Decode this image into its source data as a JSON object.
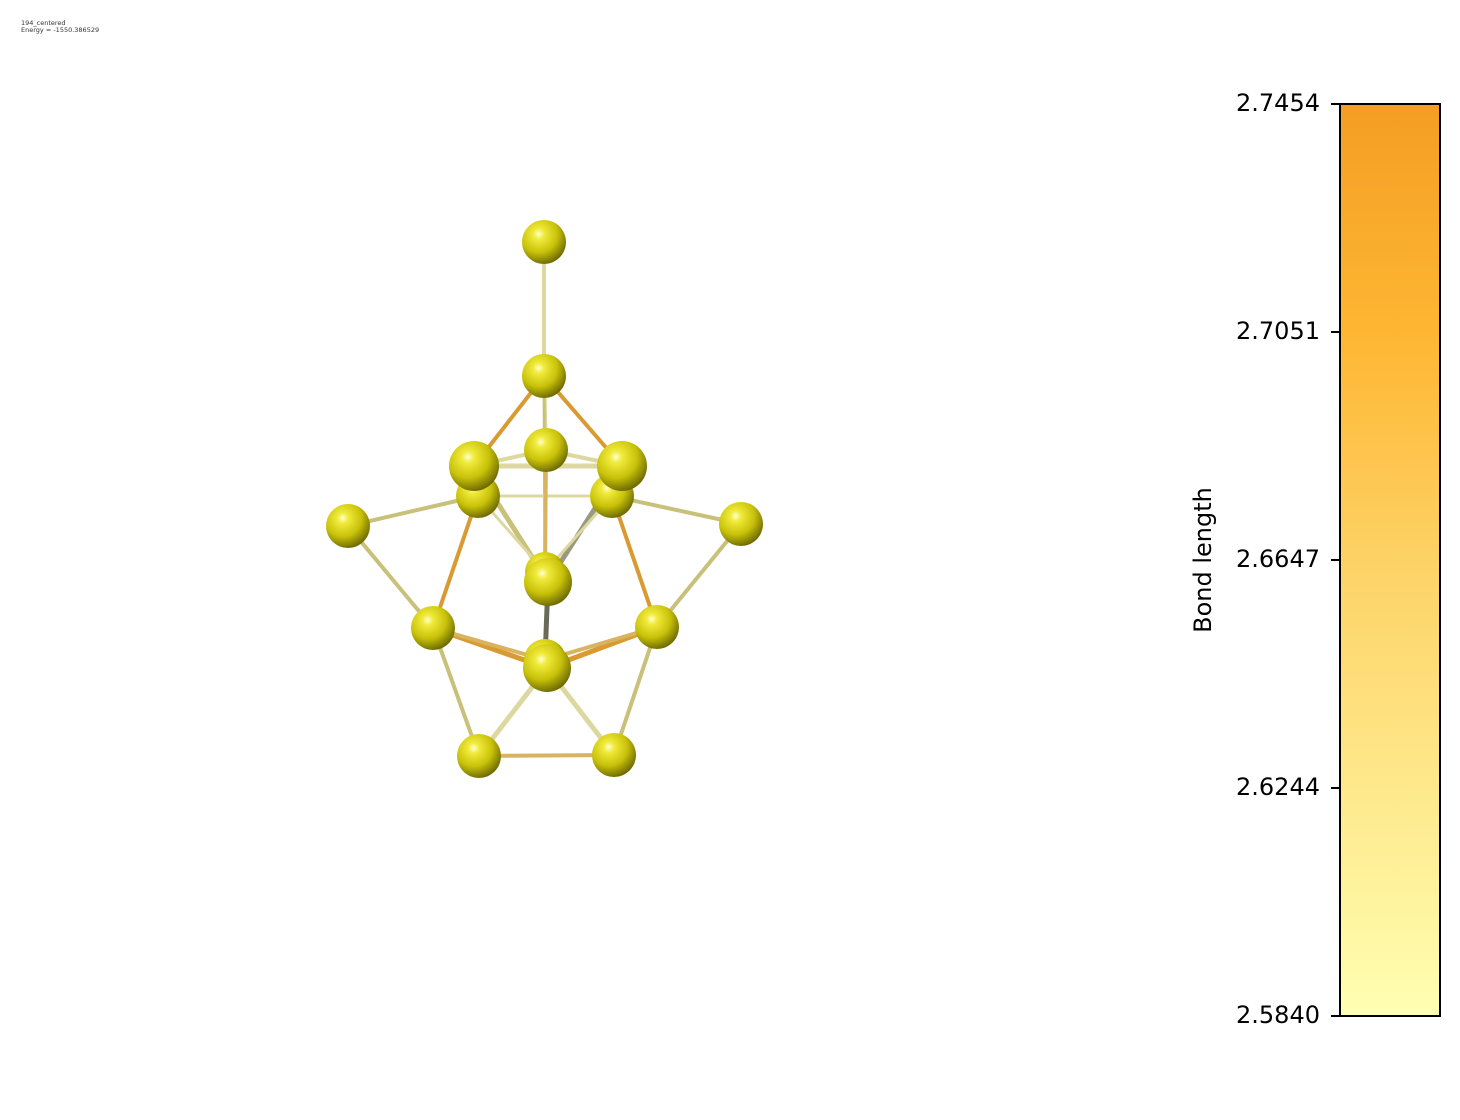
{
  "header": {
    "line1": "194_centered",
    "line2": "Energy = -1550.386529"
  },
  "colorbar": {
    "label": "Bond length",
    "min": 2.584,
    "max": 2.7454,
    "ticks": [
      "2.7454",
      "2.7051",
      "2.6647",
      "2.6244",
      "2.5840"
    ],
    "color_low": "#ffffb2",
    "color_high": "#f49e24"
  },
  "atom_color": "#d4cc0a"
}
